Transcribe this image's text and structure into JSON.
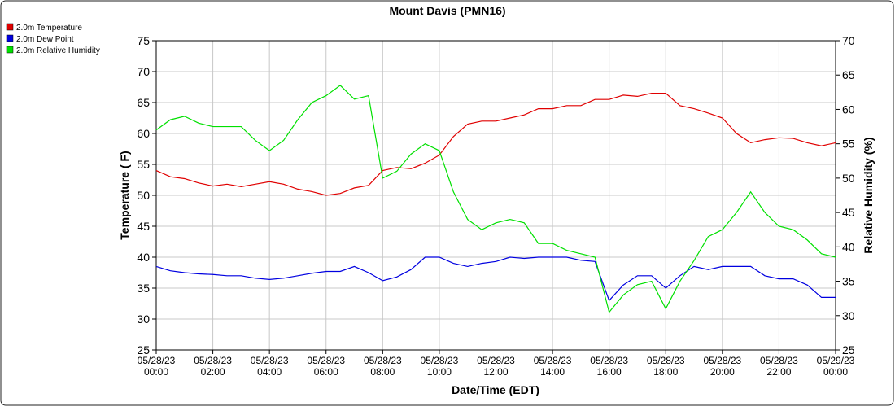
{
  "chart_data": {
    "type": "line",
    "title": "Mount Davis (PMN16)",
    "xlabel": "Date/Time (EDT)",
    "ylabel": "Temperature ( F)",
    "y2label": "Relative Humidity (%)",
    "x": [
      0,
      0.5,
      1,
      1.5,
      2,
      2.5,
      3,
      3.5,
      4,
      4.5,
      5,
      5.5,
      6,
      6.5,
      7,
      7.5,
      8,
      8.5,
      9,
      9.5,
      10,
      10.5,
      11,
      11.5,
      12,
      12.5,
      13,
      13.5,
      14,
      14.5,
      15,
      15.5,
      16,
      16.5,
      17,
      17.5,
      18,
      18.5,
      19,
      19.5,
      20,
      20.5,
      21,
      21.5,
      22,
      22.5,
      23,
      23.5,
      24
    ],
    "series": [
      {
        "name": "2.0m Temperature",
        "color": "#e00000",
        "values": [
          54,
          53,
          52.7,
          52,
          51.5,
          51.8,
          51.4,
          51.8,
          52.2,
          51.8,
          51,
          50.6,
          50,
          50.3,
          51.2,
          51.6,
          54,
          54.5,
          54.3,
          55.2,
          56.5,
          59.5,
          61.5,
          62,
          62,
          62.5,
          63,
          64,
          64,
          64.5,
          64.5,
          65.5,
          65.5,
          66.2,
          66,
          66.5,
          66.5,
          64.5,
          64,
          63.3,
          62.5,
          60,
          58.5,
          59,
          59.3,
          59.2,
          58.5,
          58,
          58.5
        ]
      },
      {
        "name": "2.0m Dew Point",
        "color": "#0000e0",
        "values": [
          38.5,
          37.8,
          37.5,
          37.3,
          37.2,
          37,
          37,
          36.6,
          36.4,
          36.6,
          37,
          37.4,
          37.7,
          37.7,
          38.5,
          37.5,
          36.2,
          36.8,
          38,
          40,
          40,
          39,
          38.5,
          39,
          39.3,
          40,
          39.8,
          40,
          40,
          40,
          39.5,
          39.3,
          33,
          35.5,
          37,
          37,
          35,
          37,
          38.5,
          38,
          38.5,
          38.5,
          38.5,
          37,
          36.5,
          36.5,
          35.5,
          33.5,
          33.5
        ]
      },
      {
        "name": "2.0m Relative Humidity",
        "color": "#00e000",
        "axis": "y2",
        "values": [
          57,
          58.5,
          59,
          58,
          57.5,
          57.5,
          57.5,
          55.5,
          54,
          55.5,
          58.5,
          61,
          62,
          63.5,
          61.5,
          62,
          50,
          51,
          53.5,
          55,
          54,
          48,
          44,
          42.5,
          43.5,
          44,
          43.5,
          40.5,
          40.5,
          39.5,
          39,
          38.5,
          30.5,
          33,
          34.5,
          35,
          31,
          35,
          38,
          41.5,
          42.5,
          45,
          48,
          45,
          43,
          42.5,
          41,
          39,
          38.5
        ]
      }
    ],
    "xlim": [
      0,
      24
    ],
    "xticks": [
      {
        "value": 0,
        "label": [
          "05/28/23",
          "00:00"
        ]
      },
      {
        "value": 2,
        "label": [
          "05/28/23",
          "02:00"
        ]
      },
      {
        "value": 4,
        "label": [
          "05/28/23",
          "04:00"
        ]
      },
      {
        "value": 6,
        "label": [
          "05/28/23",
          "06:00"
        ]
      },
      {
        "value": 8,
        "label": [
          "05/28/23",
          "08:00"
        ]
      },
      {
        "value": 10,
        "label": [
          "05/28/23",
          "10:00"
        ]
      },
      {
        "value": 12,
        "label": [
          "05/28/23",
          "12:00"
        ]
      },
      {
        "value": 14,
        "label": [
          "05/28/23",
          "14:00"
        ]
      },
      {
        "value": 16,
        "label": [
          "05/28/23",
          "16:00"
        ]
      },
      {
        "value": 18,
        "label": [
          "05/28/23",
          "18:00"
        ]
      },
      {
        "value": 20,
        "label": [
          "05/28/23",
          "20:00"
        ]
      },
      {
        "value": 22,
        "label": [
          "05/28/23",
          "22:00"
        ]
      },
      {
        "value": 24,
        "label": [
          "05/29/23",
          "00:00"
        ]
      }
    ],
    "ylim": [
      25,
      75
    ],
    "yticks": [
      25,
      30,
      35,
      40,
      45,
      50,
      55,
      60,
      65,
      70,
      75
    ],
    "y2lim": [
      25,
      70
    ],
    "y2ticks": [
      25,
      30,
      35,
      40,
      45,
      50,
      55,
      60,
      65,
      70
    ],
    "grid": true,
    "legend": "top-left"
  }
}
